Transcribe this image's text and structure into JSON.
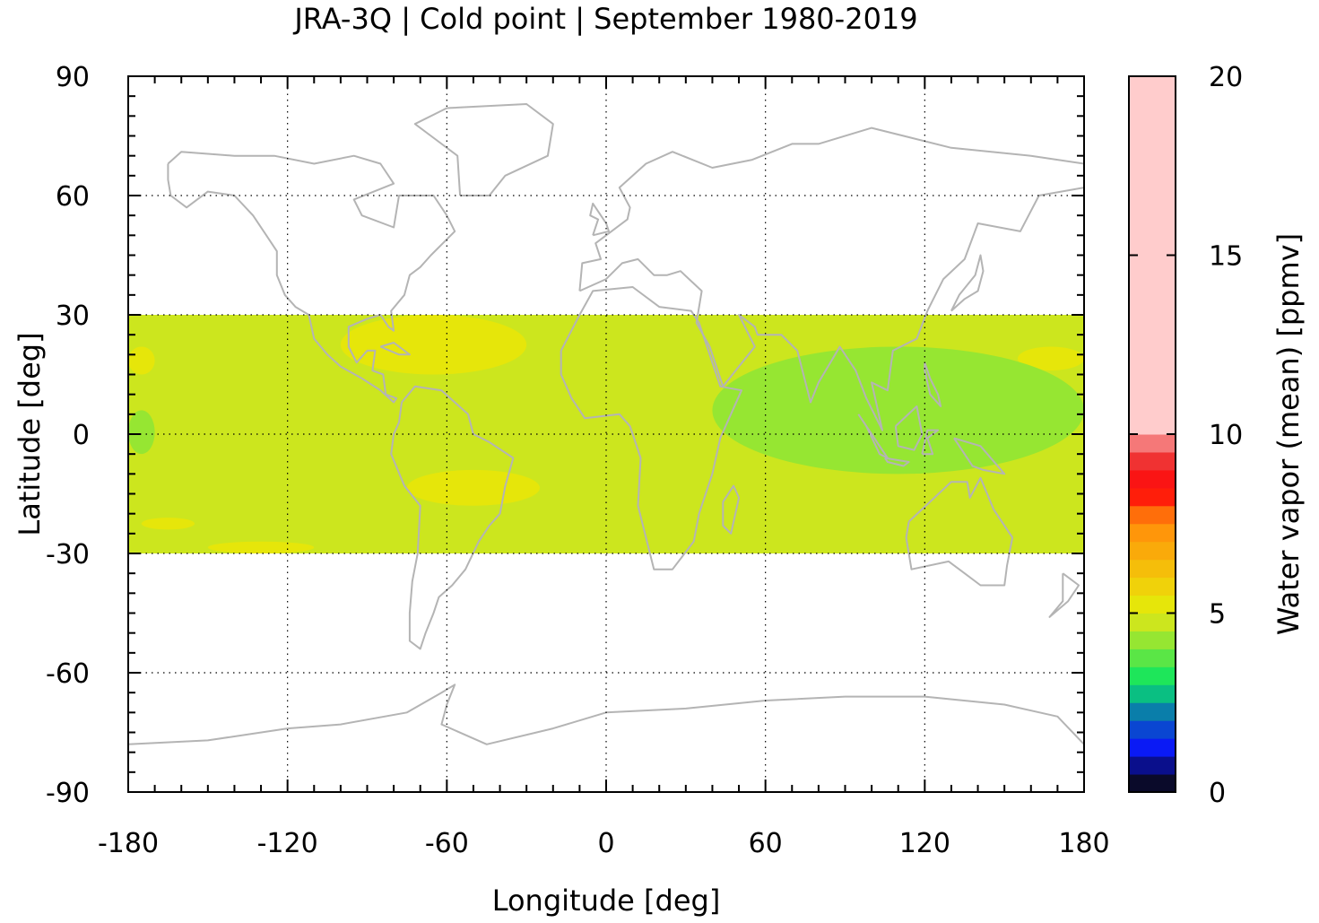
{
  "chart_data": {
    "type": "heatmap",
    "title": "JRA-3Q | Cold point | September 1980-2019",
    "xlabel": "Longitude [deg]",
    "ylabel": "Latitude [deg]",
    "xlim": [
      -180,
      180
    ],
    "ylim": [
      -90,
      90
    ],
    "x_ticks": [
      -180,
      -120,
      -60,
      0,
      60,
      120,
      180
    ],
    "x_tick_labels": [
      "-180",
      "-120",
      "-60",
      "0",
      "60",
      "120",
      "180"
    ],
    "y_ticks": [
      90,
      60,
      30,
      0,
      -30,
      -60,
      -90
    ],
    "y_tick_labels": [
      "90",
      "60",
      "30",
      "0",
      "-30",
      "-60",
      "-90"
    ],
    "grid": true,
    "data_lat_range": [
      -30,
      30
    ],
    "background_level_ppmv": [
      4.5,
      5.0
    ],
    "regions": [
      {
        "level": "5.0-5.5",
        "lon": [
          -100,
          -30
        ],
        "lat": [
          15,
          30
        ]
      },
      {
        "level": "5.0-5.5",
        "lon": [
          -180,
          -170
        ],
        "lat": [
          15,
          22
        ]
      },
      {
        "level": "5.0-5.5",
        "lon": [
          -75,
          -25
        ],
        "lat": [
          -18,
          -9
        ]
      },
      {
        "level": "5.0-5.5",
        "lon": [
          -175,
          -155
        ],
        "lat": [
          -24,
          -21
        ]
      },
      {
        "level": "5.0-5.5",
        "lon": [
          -150,
          -110
        ],
        "lat": [
          -30,
          -27
        ]
      },
      {
        "level": "5.0-5.5",
        "lon": [
          155,
          180
        ],
        "lat": [
          16,
          22
        ]
      },
      {
        "level": "4.0-4.5",
        "lon": [
          40,
          180
        ],
        "lat": [
          -10,
          22
        ]
      },
      {
        "level": "4.0-4.5",
        "lon": [
          -180,
          -170
        ],
        "lat": [
          -5,
          6
        ]
      }
    ],
    "colorbar": {
      "label": "Water vapor (mean) [ppmv]",
      "min": 0,
      "max": 20,
      "step": 0.5,
      "ticks": [
        0,
        5,
        10,
        15,
        20
      ],
      "tick_labels": [
        "0",
        "5",
        "10",
        "15",
        "20"
      ],
      "colors": [
        "#0a0a2a",
        "#0a0f8c",
        "#0a1af5",
        "#0a46d2",
        "#0a7eaa",
        "#0abf82",
        "#1ee65a",
        "#5ae646",
        "#96e632",
        "#cce61e",
        "#e6e60a",
        "#f0d20a",
        "#f5be0a",
        "#faaa0a",
        "#ff960a",
        "#ff6e0a",
        "#ff1e0a",
        "#fa1414",
        "#f03232",
        "#f57878",
        "#ffcccc"
      ]
    }
  }
}
